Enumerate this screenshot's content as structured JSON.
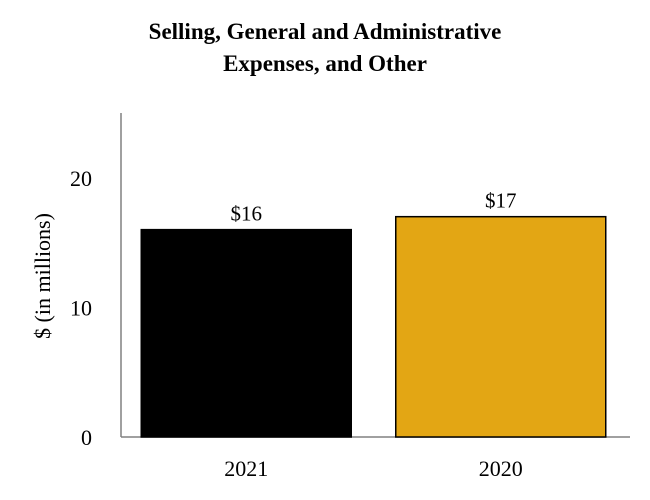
{
  "chart_data": {
    "type": "bar",
    "title_lines": [
      "Selling, General and Administrative",
      "Expenses, and Other"
    ],
    "ylabel": "$ (in millions)",
    "xlabel": "",
    "categories": [
      "2021",
      "2020"
    ],
    "values": [
      16,
      17
    ],
    "data_labels": [
      "$16",
      "$17"
    ],
    "bar_colors": [
      "#000000",
      "#E3A614"
    ],
    "ylim": [
      0,
      25
    ],
    "yticks": [
      "0",
      "10",
      "20"
    ],
    "ytick_values": [
      0,
      10,
      20
    ],
    "grid": false,
    "legend": "none"
  }
}
